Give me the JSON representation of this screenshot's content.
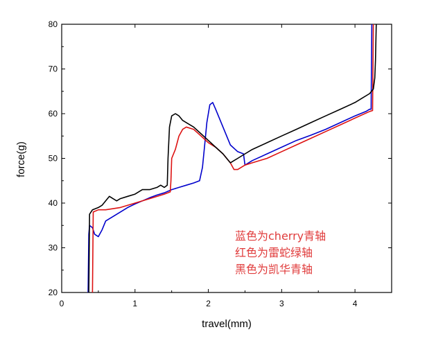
{
  "chart_data": {
    "type": "line",
    "xlabel": "travel(mm)",
    "ylabel": "force(g)",
    "xlim": [
      0,
      4.5
    ],
    "ylim": [
      20,
      80
    ],
    "xticks": [
      0,
      1,
      2,
      3,
      4
    ],
    "yticks": [
      20,
      30,
      40,
      50,
      60,
      70,
      80
    ],
    "x_tick_labels": [
      "0",
      "1",
      "2",
      "3",
      "4"
    ],
    "y_tick_labels": [
      "20",
      "30",
      "40",
      "50",
      "60",
      "70",
      "80"
    ],
    "grid": false,
    "annotations": [
      "蓝色为cherry青轴",
      "红色为雷蛇绿轴",
      "黑色为凯华青轴"
    ],
    "series": [
      {
        "color": "#0000cc",
        "points": [
          [
            0.36,
            20
          ],
          [
            0.37,
            33
          ],
          [
            0.38,
            35
          ],
          [
            0.42,
            34.5
          ],
          [
            0.45,
            33
          ],
          [
            0.5,
            32.5
          ],
          [
            0.55,
            34
          ],
          [
            0.6,
            36
          ],
          [
            0.7,
            37
          ],
          [
            0.8,
            38
          ],
          [
            0.9,
            39
          ],
          [
            1.0,
            39.8
          ],
          [
            1.1,
            40.5
          ],
          [
            1.2,
            41.2
          ],
          [
            1.3,
            41.8
          ],
          [
            1.4,
            42.3
          ],
          [
            1.5,
            43
          ],
          [
            1.6,
            43.5
          ],
          [
            1.7,
            44
          ],
          [
            1.8,
            44.5
          ],
          [
            1.88,
            45
          ],
          [
            1.92,
            48
          ],
          [
            1.95,
            53
          ],
          [
            1.98,
            58
          ],
          [
            2.02,
            62
          ],
          [
            2.06,
            62.5
          ],
          [
            2.1,
            61
          ],
          [
            2.15,
            59
          ],
          [
            2.2,
            57
          ],
          [
            2.3,
            53
          ],
          [
            2.4,
            51.5
          ],
          [
            2.48,
            51
          ],
          [
            2.5,
            48.5
          ],
          [
            2.6,
            49.5
          ],
          [
            2.8,
            51
          ],
          [
            3.0,
            52.5
          ],
          [
            3.2,
            54
          ],
          [
            3.4,
            55.2
          ],
          [
            3.6,
            56.5
          ],
          [
            3.8,
            58
          ],
          [
            4.0,
            59.5
          ],
          [
            4.15,
            60.5
          ],
          [
            4.2,
            61
          ],
          [
            4.22,
            61
          ],
          [
            4.23,
            80
          ]
        ]
      },
      {
        "color": "#dd1111",
        "points": [
          [
            0.42,
            20
          ],
          [
            0.43,
            38
          ],
          [
            0.5,
            38.5
          ],
          [
            0.6,
            38.5
          ],
          [
            0.8,
            39
          ],
          [
            1.0,
            40
          ],
          [
            1.2,
            41
          ],
          [
            1.4,
            42
          ],
          [
            1.48,
            42.5
          ],
          [
            1.49,
            45
          ],
          [
            1.5,
            50
          ],
          [
            1.55,
            52
          ],
          [
            1.6,
            55
          ],
          [
            1.65,
            56.5
          ],
          [
            1.7,
            57
          ],
          [
            1.8,
            56.5
          ],
          [
            1.9,
            55
          ],
          [
            2.0,
            53.5
          ],
          [
            2.1,
            52.5
          ],
          [
            2.2,
            51
          ],
          [
            2.3,
            49
          ],
          [
            2.35,
            47.5
          ],
          [
            2.4,
            47.5
          ],
          [
            2.5,
            48.5
          ],
          [
            2.6,
            49
          ],
          [
            2.8,
            50
          ],
          [
            3.0,
            51.5
          ],
          [
            3.2,
            53
          ],
          [
            3.4,
            54.5
          ],
          [
            3.6,
            56
          ],
          [
            3.8,
            57.5
          ],
          [
            4.0,
            59
          ],
          [
            4.2,
            60.5
          ],
          [
            4.24,
            60.7
          ],
          [
            4.25,
            80
          ]
        ]
      },
      {
        "color": "#000000",
        "points": [
          [
            0.37,
            20
          ],
          [
            0.38,
            37.5
          ],
          [
            0.42,
            38.5
          ],
          [
            0.5,
            39
          ],
          [
            0.55,
            39.5
          ],
          [
            0.6,
            40.5
          ],
          [
            0.65,
            41.5
          ],
          [
            0.7,
            41
          ],
          [
            0.75,
            40.5
          ],
          [
            0.8,
            41
          ],
          [
            0.9,
            41.5
          ],
          [
            1.0,
            42
          ],
          [
            1.1,
            43
          ],
          [
            1.2,
            43
          ],
          [
            1.3,
            43.5
          ],
          [
            1.35,
            44
          ],
          [
            1.4,
            43.5
          ],
          [
            1.44,
            44
          ],
          [
            1.45,
            50
          ],
          [
            1.47,
            57
          ],
          [
            1.5,
            59.5
          ],
          [
            1.55,
            60
          ],
          [
            1.6,
            59.5
          ],
          [
            1.65,
            58.5
          ],
          [
            1.7,
            58
          ],
          [
            1.8,
            57
          ],
          [
            1.9,
            55.5
          ],
          [
            2.0,
            54
          ],
          [
            2.1,
            52.5
          ],
          [
            2.2,
            51
          ],
          [
            2.3,
            49
          ],
          [
            2.35,
            49.5
          ],
          [
            2.4,
            50
          ],
          [
            2.5,
            51
          ],
          [
            2.6,
            52
          ],
          [
            2.8,
            53.5
          ],
          [
            3.0,
            55
          ],
          [
            3.2,
            56.5
          ],
          [
            3.4,
            58
          ],
          [
            3.6,
            59.5
          ],
          [
            3.8,
            61
          ],
          [
            4.0,
            62.5
          ],
          [
            4.1,
            63.5
          ],
          [
            4.2,
            64.5
          ],
          [
            4.25,
            65.5
          ],
          [
            4.27,
            68
          ],
          [
            4.28,
            72
          ],
          [
            4.29,
            80
          ]
        ]
      }
    ]
  }
}
